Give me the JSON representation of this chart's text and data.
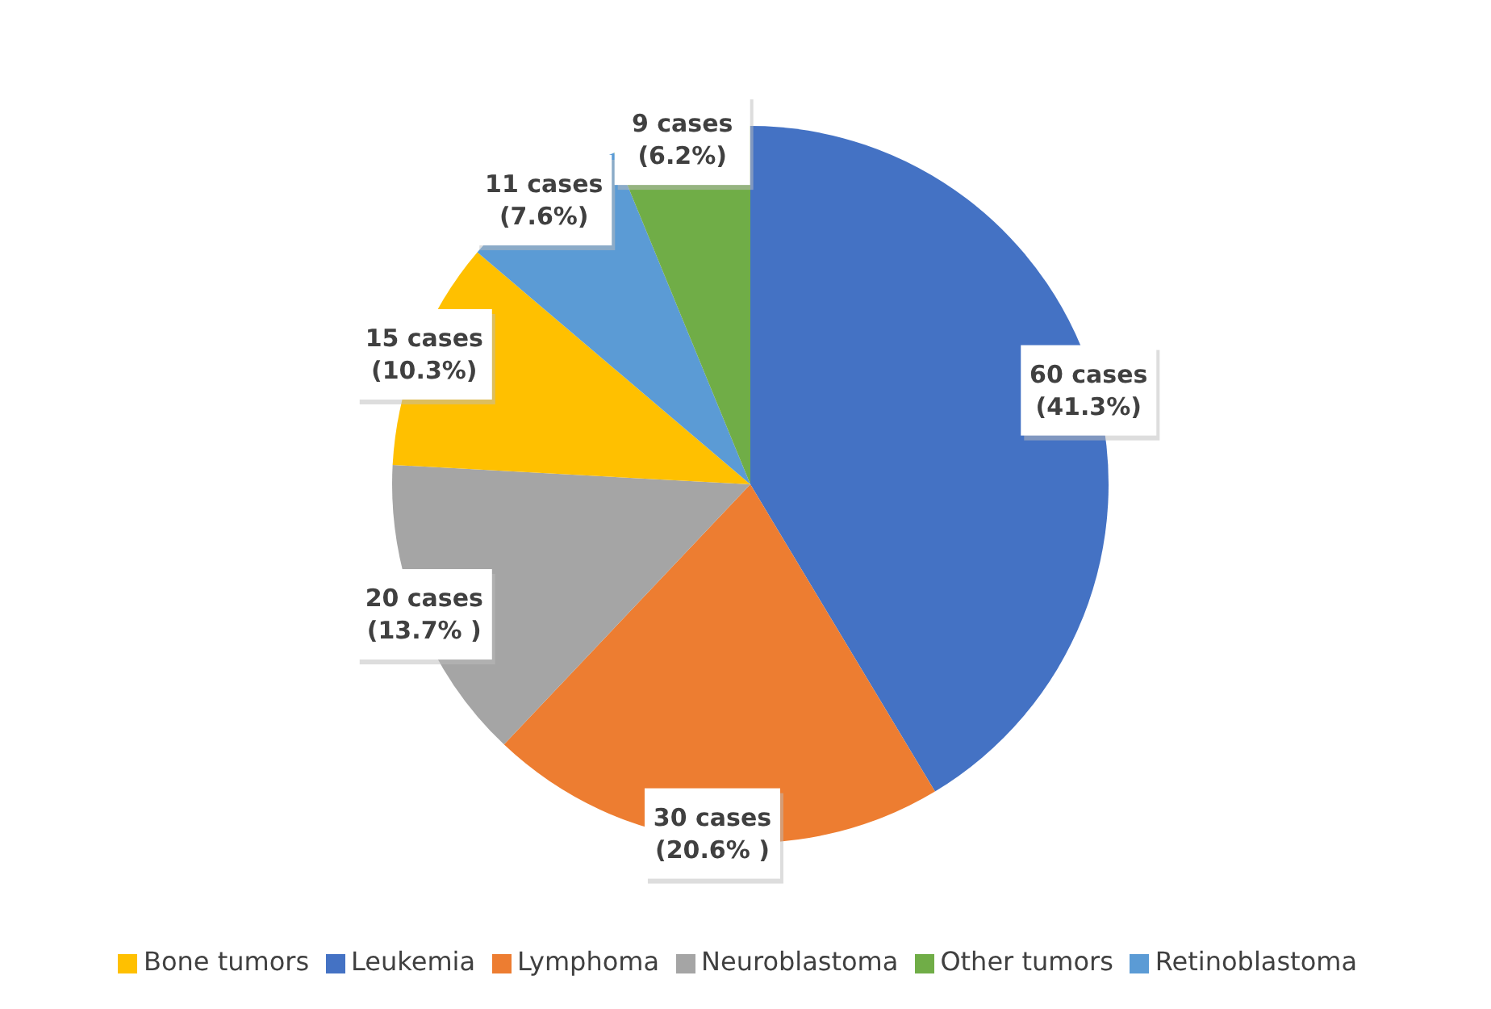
{
  "chart_data": {
    "type": "pie",
    "categories": [
      "Leukemia",
      "Lymphoma",
      "Neuroblastoma",
      "Bone tumors",
      "Retinoblastoma",
      "Other tumors"
    ],
    "values": [
      60,
      30,
      20,
      15,
      11,
      9
    ],
    "colors": [
      "#4472c4",
      "#ed7d31",
      "#a5a5a5",
      "#ffc000",
      "#5b9bd5",
      "#70ad47"
    ],
    "value_labels": [
      "60 cases\n(41.3%)",
      "30 cases\n(20.6% )",
      "20 cases\n(13.7% )",
      "15 cases\n(10.3%)",
      "11 cases\n(7.6%)",
      "9 cases\n(6.2%)"
    ],
    "legend": "bottom"
  }
}
